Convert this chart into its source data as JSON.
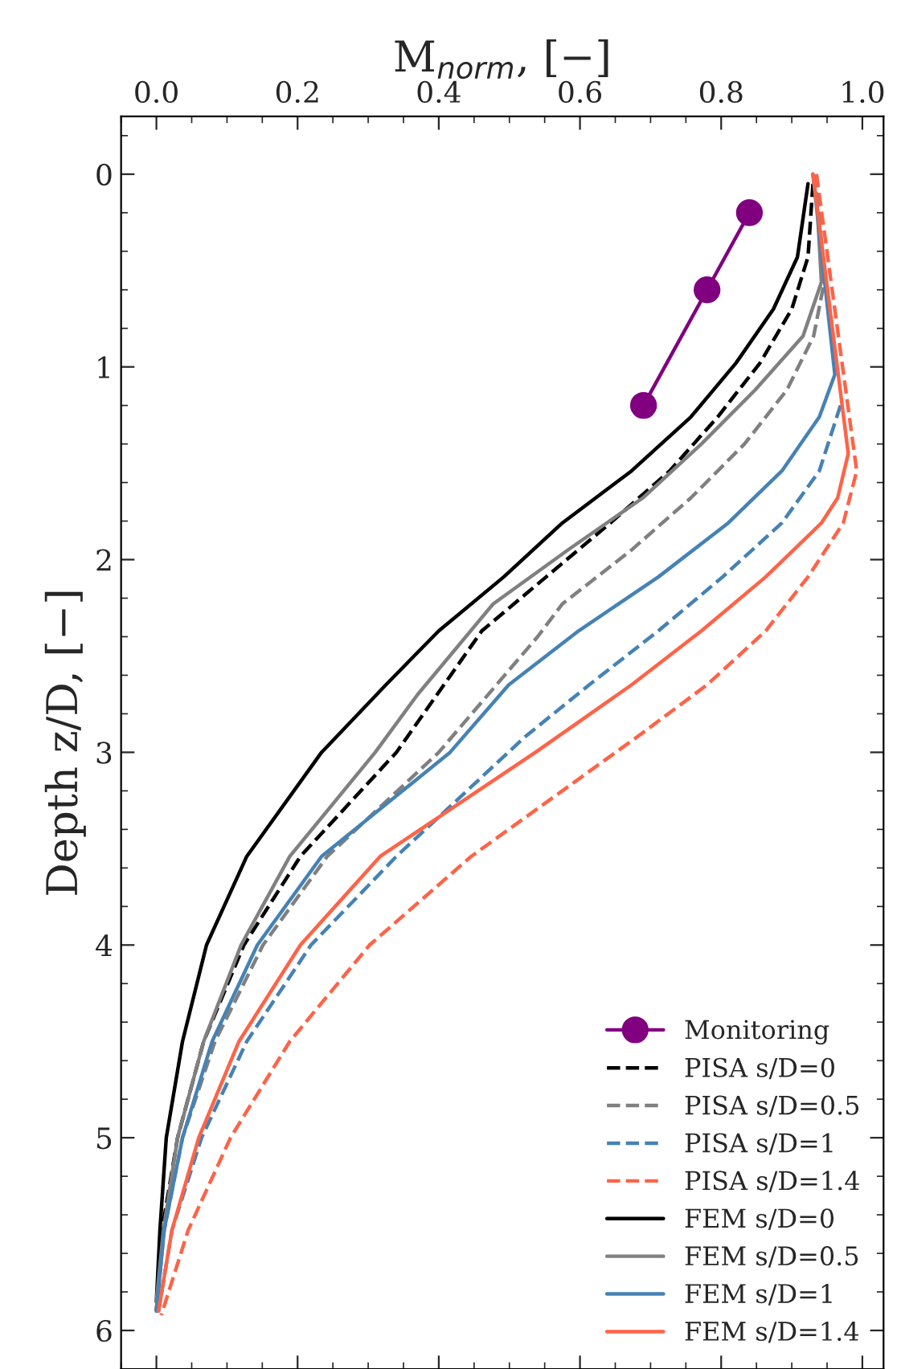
{
  "chart_data": {
    "type": "line",
    "xlabel": "M$_{norm}$, [−]",
    "ylabel": "Depth z/D, [−]",
    "xlim": [
      -0.05,
      1.03
    ],
    "xticks": [
      {
        "value": 0,
        "label": "0.0"
      },
      0.2,
      0.4,
      0.6,
      0.8,
      {
        "value": 1,
        "label": "1.0"
      }
    ],
    "ylim": [
      6.2,
      -0.3
    ],
    "yticks": [
      0,
      1,
      2,
      3,
      4,
      5,
      6
    ],
    "grid": false,
    "legend": "bottom right",
    "series": [
      {
        "name": "Monitoring",
        "color": "#800080",
        "marker": "circle",
        "line_style": "solid",
        "x": [
          0.84,
          0.78,
          0.69
        ],
        "values": [
          0.2,
          0.6,
          1.2
        ]
      },
      {
        "name": "PISA s/D=0",
        "color": "#000000",
        "marker": "none",
        "line_style": "dashed",
        "x": [
          0.93,
          0.923,
          0.9,
          0.855,
          0.795,
          0.727,
          0.643,
          0.552,
          0.461,
          0.34,
          0.204,
          0.124,
          0.067,
          0.03,
          0.008,
          0.0
        ],
        "values": [
          0.05,
          0.43,
          0.7,
          0.98,
          1.26,
          1.54,
          1.81,
          2.09,
          2.37,
          3.0,
          3.54,
          4.0,
          4.5,
          5.0,
          5.48,
          5.9
        ]
      },
      {
        "name": "PISA s/D=0.5",
        "color": "#808080",
        "marker": "none",
        "line_style": "dashed",
        "x": [
          0.935,
          0.946,
          0.931,
          0.893,
          0.833,
          0.757,
          0.673,
          0.575,
          0.54,
          0.4,
          0.242,
          0.151,
          0.083,
          0.037,
          0.011,
          0.0
        ],
        "values": [
          0.0,
          0.56,
          0.84,
          1.12,
          1.4,
          1.68,
          1.95,
          2.23,
          2.4,
          3.0,
          3.54,
          4.0,
          4.5,
          5.0,
          5.48,
          5.9
        ]
      },
      {
        "name": "PISA s/D=1",
        "color": "#4682b4",
        "marker": "none",
        "line_style": "dashed",
        "x": [
          0.969,
          0.939,
          0.886,
          0.802,
          0.711,
          0.613,
          0.522,
          0.34,
          0.219,
          0.128,
          0.064,
          0.022,
          0.003
        ],
        "values": [
          1.2,
          1.54,
          1.81,
          2.09,
          2.37,
          2.65,
          2.92,
          3.54,
          4.0,
          4.5,
          5.0,
          5.48,
          5.9
        ]
      },
      {
        "name": "PISA s/D=1.4",
        "color": "#ff6347",
        "marker": "none",
        "line_style": "dashed",
        "x": [
          0.935,
          0.992,
          0.973,
          0.923,
          0.863,
          0.78,
          0.681,
          0.446,
          0.302,
          0.189,
          0.105,
          0.045,
          0.007
        ],
        "values": [
          0.0,
          1.54,
          1.81,
          2.09,
          2.37,
          2.65,
          2.92,
          3.54,
          4.0,
          4.5,
          5.0,
          5.48,
          5.92
        ]
      },
      {
        "name": "FEM s/D=0",
        "color": "#000000",
        "marker": "none",
        "line_style": "solid",
        "x": [
          0.923,
          0.908,
          0.874,
          0.821,
          0.757,
          0.673,
          0.575,
          0.492,
          0.4,
          0.325,
          0.234,
          0.128,
          0.071,
          0.037,
          0.014,
          0.005,
          0.0
        ],
        "values": [
          0.05,
          0.43,
          0.7,
          0.98,
          1.26,
          1.54,
          1.81,
          2.09,
          2.37,
          2.65,
          3.0,
          3.54,
          4.0,
          4.5,
          5.0,
          5.48,
          5.85
        ]
      },
      {
        "name": "FEM s/D=0.5",
        "color": "#808080",
        "marker": "none",
        "line_style": "solid",
        "x": [
          0.935,
          0.942,
          0.916,
          0.848,
          0.772,
          0.689,
          0.583,
          0.477,
          0.37,
          0.31,
          0.189,
          0.12,
          0.067,
          0.03,
          0.01,
          0.0
        ],
        "values": [
          0.1,
          0.56,
          0.84,
          1.12,
          1.4,
          1.68,
          1.95,
          2.23,
          2.7,
          3.0,
          3.54,
          4.0,
          4.5,
          5.0,
          5.48,
          5.85
        ]
      },
      {
        "name": "FEM s/D=1",
        "color": "#4682b4",
        "marker": "none",
        "line_style": "solid",
        "x": [
          0.93,
          0.961,
          0.939,
          0.886,
          0.81,
          0.711,
          0.598,
          0.499,
          0.416,
          0.234,
          0.143,
          0.079,
          0.037,
          0.011,
          0.0
        ],
        "values": [
          0.0,
          1.04,
          1.26,
          1.54,
          1.81,
          2.09,
          2.37,
          2.65,
          3.0,
          3.54,
          4.0,
          4.5,
          5.0,
          5.48,
          5.9
        ]
      },
      {
        "name": "FEM s/D=1.4",
        "color": "#ff6347",
        "marker": "none",
        "line_style": "solid",
        "x": [
          0.93,
          0.98,
          0.965,
          0.942,
          0.863,
          0.772,
          0.673,
          0.537,
          0.317,
          0.204,
          0.117,
          0.06,
          0.022,
          0.003
        ],
        "values": [
          0.0,
          1.45,
          1.68,
          1.81,
          2.09,
          2.37,
          2.65,
          3.0,
          3.54,
          4.0,
          4.5,
          5.0,
          5.48,
          5.9
        ]
      }
    ]
  }
}
